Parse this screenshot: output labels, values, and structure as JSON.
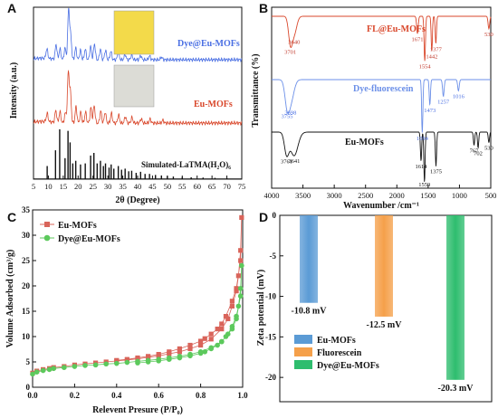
{
  "panels": {
    "a": "A",
    "b": "B",
    "c": "C",
    "d": "D"
  },
  "chart_data": [
    {
      "panel": "A",
      "type": "line",
      "xlabel": "2θ (Degree)",
      "ylabel": "Intensity (a.u.)",
      "xlim": [
        5,
        75
      ],
      "xticks": [
        "5",
        "10",
        "15",
        "20",
        "25",
        "30",
        "35",
        "40",
        "45",
        "50",
        "55",
        "60",
        "65",
        "70",
        "75"
      ],
      "series": [
        {
          "name": "Dye@Eu-MOFs",
          "color": "#4a6fe3",
          "peaks": [
            {
              "x": 9.5,
              "h": 0.18
            },
            {
              "x": 12.6,
              "h": 0.28
            },
            {
              "x": 13.9,
              "h": 0.2
            },
            {
              "x": 15.6,
              "h": 0.22
            },
            {
              "x": 16.8,
              "h": 0.95
            },
            {
              "x": 17.5,
              "h": 0.45
            },
            {
              "x": 19.2,
              "h": 0.22
            },
            {
              "x": 20.8,
              "h": 0.18
            },
            {
              "x": 22.4,
              "h": 0.2
            },
            {
              "x": 24.2,
              "h": 0.25
            },
            {
              "x": 25.5,
              "h": 0.3
            },
            {
              "x": 27.5,
              "h": 0.2
            },
            {
              "x": 29.2,
              "h": 0.18
            },
            {
              "x": 31.0,
              "h": 0.16
            },
            {
              "x": 33.5,
              "h": 0.14
            },
            {
              "x": 35.8,
              "h": 0.1
            },
            {
              "x": 38.0,
              "h": 0.09
            },
            {
              "x": 41.0,
              "h": 0.08
            },
            {
              "x": 44.0,
              "h": 0.07
            },
            {
              "x": 48.0,
              "h": 0.05
            }
          ]
        },
        {
          "name": "Eu-MOFs",
          "color": "#d9472b",
          "peaks": [
            {
              "x": 9.6,
              "h": 0.15
            },
            {
              "x": 12.5,
              "h": 0.22
            },
            {
              "x": 13.9,
              "h": 0.2
            },
            {
              "x": 15.7,
              "h": 0.18
            },
            {
              "x": 16.7,
              "h": 0.92
            },
            {
              "x": 17.4,
              "h": 0.55
            },
            {
              "x": 19.3,
              "h": 0.3
            },
            {
              "x": 20.9,
              "h": 0.2
            },
            {
              "x": 22.5,
              "h": 0.2
            },
            {
              "x": 24.3,
              "h": 0.28
            },
            {
              "x": 25.4,
              "h": 0.32
            },
            {
              "x": 27.6,
              "h": 0.22
            },
            {
              "x": 29.1,
              "h": 0.2
            },
            {
              "x": 31.2,
              "h": 0.18
            },
            {
              "x": 33.6,
              "h": 0.15
            },
            {
              "x": 35.9,
              "h": 0.12
            },
            {
              "x": 38.1,
              "h": 0.1
            },
            {
              "x": 41.2,
              "h": 0.08
            },
            {
              "x": 44.2,
              "h": 0.07
            },
            {
              "x": 48.5,
              "h": 0.05
            }
          ]
        },
        {
          "name": "Simulated-LaTMA(H₂O)₆",
          "type": "stick",
          "color": "#111111",
          "peaks": [
            {
              "x": 9.6,
              "h": 0.25
            },
            {
              "x": 12.4,
              "h": 0.55
            },
            {
              "x": 13.8,
              "h": 0.95
            },
            {
              "x": 15.6,
              "h": 0.4
            },
            {
              "x": 16.6,
              "h": 0.92
            },
            {
              "x": 17.3,
              "h": 0.7
            },
            {
              "x": 18.2,
              "h": 0.3
            },
            {
              "x": 19.2,
              "h": 0.35
            },
            {
              "x": 20.8,
              "h": 0.28
            },
            {
              "x": 22.4,
              "h": 0.3
            },
            {
              "x": 24.2,
              "h": 0.45
            },
            {
              "x": 25.3,
              "h": 0.5
            },
            {
              "x": 26.4,
              "h": 0.3
            },
            {
              "x": 27.5,
              "h": 0.35
            },
            {
              "x": 28.5,
              "h": 0.25
            },
            {
              "x": 29.2,
              "h": 0.3
            },
            {
              "x": 30.4,
              "h": 0.22
            },
            {
              "x": 31.1,
              "h": 0.28
            },
            {
              "x": 32.0,
              "h": 0.2
            },
            {
              "x": 33.5,
              "h": 0.25
            },
            {
              "x": 34.6,
              "h": 0.18
            },
            {
              "x": 35.8,
              "h": 0.2
            },
            {
              "x": 37.0,
              "h": 0.15
            },
            {
              "x": 38.0,
              "h": 0.16
            },
            {
              "x": 39.5,
              "h": 0.12
            },
            {
              "x": 41.0,
              "h": 0.14
            },
            {
              "x": 42.5,
              "h": 0.1
            },
            {
              "x": 44.0,
              "h": 0.1
            },
            {
              "x": 46.0,
              "h": 0.08
            },
            {
              "x": 48.0,
              "h": 0.07
            },
            {
              "x": 50.0,
              "h": 0.06
            },
            {
              "x": 52.0,
              "h": 0.05
            },
            {
              "x": 55.0,
              "h": 0.04
            },
            {
              "x": 58.0,
              "h": 0.035
            },
            {
              "x": 62.0,
              "h": 0.03
            },
            {
              "x": 66.0,
              "h": 0.025
            },
            {
              "x": 70.0,
              "h": 0.02
            }
          ]
        }
      ],
      "insets": [
        {
          "label": "Dye@Eu-MOFs photo",
          "color": "#f3da4a"
        },
        {
          "label": "Eu-MOFs photo",
          "color": "#dcdcd6"
        }
      ]
    },
    {
      "panel": "B",
      "type": "line",
      "xlabel": "Wavenumber /cm⁻¹",
      "ylabel": "Transmittance (%)",
      "xlim": [
        4000,
        500
      ],
      "xticks": [
        "4000",
        "3500",
        "3000",
        "2500",
        "2000",
        "1500",
        "1000",
        "500"
      ],
      "series": [
        {
          "name": "FL@Eu-MOFs",
          "color": "#d9472b",
          "bands": [
            {
              "x": 3701,
              "d": 0.5,
              "w": 60
            },
            {
              "x": 3640,
              "d": 0.35,
              "w": 80
            },
            {
              "x": 1671,
              "d": 0.35,
              "w": 25
            },
            {
              "x": 1554,
              "d": 0.9,
              "w": 22
            },
            {
              "x": 1442,
              "d": 0.7,
              "w": 20
            },
            {
              "x": 1377,
              "d": 0.55,
              "w": 20
            },
            {
              "x": 530,
              "d": 0.25,
              "w": 25
            }
          ],
          "labels": [
            "3701",
            "3640",
            "1671",
            "1554",
            "1442",
            "1377",
            "530"
          ]
        },
        {
          "name": "Dye-fluorescein",
          "color": "#6b8fe8",
          "bands": [
            {
              "x": 3755,
              "d": 0.35,
              "w": 70
            },
            {
              "x": 3698,
              "d": 0.4,
              "w": 100
            },
            {
              "x": 1594,
              "d": 0.95,
              "w": 20
            },
            {
              "x": 1473,
              "d": 0.45,
              "w": 20
            },
            {
              "x": 1257,
              "d": 0.3,
              "w": 25
            },
            {
              "x": 1016,
              "d": 0.2,
              "w": 25
            }
          ],
          "labels": [
            "3755",
            "3698",
            "1594",
            "1473",
            "1257",
            "1016"
          ]
        },
        {
          "name": "Eu-MOFs",
          "color": "#111111",
          "bands": [
            {
              "x": 3761,
              "d": 0.4,
              "w": 70
            },
            {
              "x": 3641,
              "d": 0.45,
              "w": 120
            },
            {
              "x": 1614,
              "d": 0.55,
              "w": 20
            },
            {
              "x": 1559,
              "d": 0.95,
              "w": 20
            },
            {
              "x": 1375,
              "d": 0.65,
              "w": 20
            },
            {
              "x": 767,
              "d": 0.25,
              "w": 20
            },
            {
              "x": 702,
              "d": 0.3,
              "w": 20
            },
            {
              "x": 530,
              "d": 0.2,
              "w": 20
            }
          ],
          "labels": [
            "3761",
            "3641",
            "1614",
            "1559",
            "1375",
            "767",
            "702",
            "530"
          ]
        }
      ]
    },
    {
      "panel": "C",
      "type": "scatter",
      "xlabel": "Relevent Presure (P/P₀)",
      "ylabel": "Volume Adsorbed (cm³/g)",
      "xlim": [
        0.0,
        1.0
      ],
      "ylim": [
        0,
        35
      ],
      "xticks": [
        "0.0",
        "0.2",
        "0.4",
        "0.6",
        "0.8",
        "1.0"
      ],
      "yticks": [
        "0",
        "5",
        "10",
        "15",
        "20",
        "25",
        "30",
        "35"
      ],
      "series": [
        {
          "name": "Eu-MOFs",
          "color": "#d9645a",
          "marker": "square",
          "x": [
            0.0,
            0.02,
            0.05,
            0.08,
            0.1,
            0.15,
            0.2,
            0.25,
            0.3,
            0.35,
            0.4,
            0.45,
            0.5,
            0.55,
            0.6,
            0.65,
            0.7,
            0.75,
            0.8,
            0.85,
            0.9,
            0.93,
            0.95,
            0.97,
            0.98,
            0.99,
            0.995,
            0.99,
            0.97,
            0.95,
            0.92,
            0.9,
            0.88,
            0.85,
            0.82,
            0.8,
            0.75,
            0.7,
            0.65,
            0.6,
            0.55,
            0.5,
            0.45,
            0.4
          ],
          "y": [
            2.8,
            3.2,
            3.5,
            3.7,
            3.9,
            4.1,
            4.4,
            4.6,
            4.8,
            5.0,
            5.2,
            5.4,
            5.6,
            5.9,
            6.2,
            6.6,
            7.0,
            7.6,
            8.3,
            9.5,
            11.5,
            13.5,
            16.0,
            19.0,
            22.0,
            27.0,
            33.5,
            25.0,
            19.5,
            17.0,
            14.0,
            12.5,
            11.5,
            10.5,
            9.6,
            9.1,
            8.3,
            7.6,
            7.0,
            6.5,
            6.1,
            5.8,
            5.5,
            5.3
          ]
        },
        {
          "name": "Dye@Eu-MOFs",
          "color": "#5cc95c",
          "marker": "circle",
          "x": [
            0.0,
            0.02,
            0.05,
            0.08,
            0.1,
            0.15,
            0.2,
            0.25,
            0.3,
            0.35,
            0.4,
            0.45,
            0.5,
            0.55,
            0.6,
            0.65,
            0.7,
            0.75,
            0.8,
            0.85,
            0.9,
            0.93,
            0.95,
            0.97,
            0.98,
            0.99,
            0.995,
            0.99,
            0.97,
            0.95,
            0.92,
            0.9,
            0.88,
            0.85,
            0.82,
            0.8,
            0.75,
            0.7,
            0.65,
            0.6,
            0.55,
            0.5
          ],
          "y": [
            2.6,
            3.0,
            3.3,
            3.5,
            3.7,
            3.9,
            4.1,
            4.3,
            4.4,
            4.6,
            4.7,
            4.9,
            5.1,
            5.3,
            5.5,
            5.8,
            6.1,
            6.5,
            7.0,
            7.8,
            9.0,
            10.5,
            12.0,
            14.0,
            16.0,
            19.5,
            24.0,
            18.0,
            13.5,
            11.5,
            10.0,
            9.0,
            8.3,
            7.6,
            7.0,
            6.7,
            6.2,
            5.8,
            5.5,
            5.2,
            5.0,
            4.8
          ]
        }
      ]
    },
    {
      "panel": "D",
      "type": "bar",
      "ylabel": "Zeta potential (mV)",
      "ylim": [
        -23,
        0
      ],
      "yticks": [
        "0",
        "-5",
        "-10",
        "-15",
        "-20"
      ],
      "categories": [
        "Eu-MOFs",
        "Fluorescein",
        "Dye@Eu-MOFs"
      ],
      "values": [
        -10.8,
        -12.5,
        -20.3
      ],
      "value_labels": [
        "-10.8 mV",
        "-12.5 mV",
        "-20.3 mV"
      ],
      "colors": [
        "#5b9bd5",
        "#f5a04a",
        "#2ebd6e"
      ]
    }
  ]
}
